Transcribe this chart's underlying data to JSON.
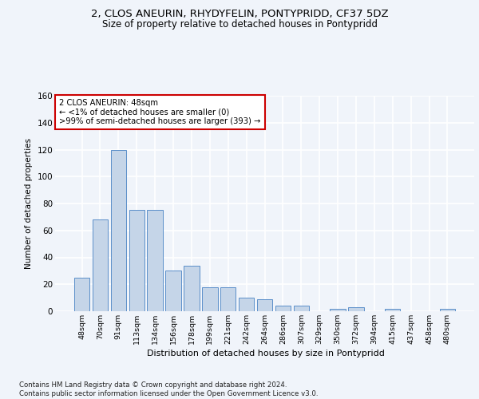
{
  "title": "2, CLOS ANEURIN, RHYDYFELIN, PONTYPRIDD, CF37 5DZ",
  "subtitle": "Size of property relative to detached houses in Pontypridd",
  "xlabel": "Distribution of detached houses by size in Pontypridd",
  "ylabel": "Number of detached properties",
  "bar_color": "#c5d5e8",
  "bar_edge_color": "#5b8fc9",
  "categories": [
    "48sqm",
    "70sqm",
    "91sqm",
    "113sqm",
    "134sqm",
    "156sqm",
    "178sqm",
    "199sqm",
    "221sqm",
    "242sqm",
    "264sqm",
    "286sqm",
    "307sqm",
    "329sqm",
    "350sqm",
    "372sqm",
    "394sqm",
    "415sqm",
    "437sqm",
    "458sqm",
    "480sqm"
  ],
  "values": [
    25,
    68,
    120,
    75,
    75,
    30,
    34,
    18,
    18,
    10,
    9,
    4,
    4,
    0,
    2,
    3,
    0,
    2,
    0,
    0,
    2
  ],
  "ylim": [
    0,
    160
  ],
  "yticks": [
    0,
    20,
    40,
    60,
    80,
    100,
    120,
    140,
    160
  ],
  "annotation_text": "2 CLOS ANEURIN: 48sqm\n← <1% of detached houses are smaller (0)\n>99% of semi-detached houses are larger (393) →",
  "footer": "Contains HM Land Registry data © Crown copyright and database right 2024.\nContains public sector information licensed under the Open Government Licence v3.0.",
  "bg_color": "#f0f4fa",
  "plot_bg_color": "#f0f4fa",
  "grid_color": "#ffffff",
  "annotation_box_edge_color": "#cc0000"
}
